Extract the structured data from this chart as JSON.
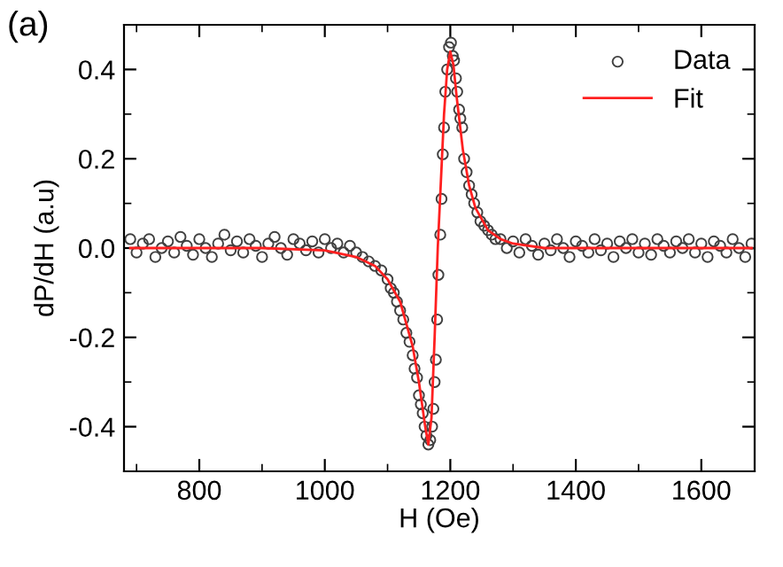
{
  "chart_data": {
    "type": "scatter",
    "title": "(a)",
    "xlabel": "H (Oe)",
    "ylabel": "dP/dH (a.u)",
    "xlim": [
      680,
      1685
    ],
    "ylim": [
      -0.5,
      0.5
    ],
    "xticks": [
      800,
      1000,
      1200,
      1400,
      1600
    ],
    "yticks": [
      {
        "value": -0.4,
        "label": "-0.4"
      },
      {
        "value": -0.2,
        "label": "-0.2"
      },
      {
        "value": 0.0,
        "label": "0.0"
      },
      {
        "value": 0.2,
        "label": "0.2"
      },
      {
        "value": 0.4,
        "label": "0.4"
      }
    ],
    "grid": false,
    "legend": "top right",
    "series": [
      {
        "name": "Data",
        "color": "#404040",
        "marker": "circle",
        "x": [
          690,
          700,
          710,
          720,
          730,
          740,
          750,
          760,
          770,
          780,
          790,
          800,
          810,
          820,
          830,
          840,
          850,
          860,
          870,
          880,
          890,
          900,
          910,
          920,
          930,
          940,
          950,
          960,
          970,
          980,
          990,
          1000,
          1010,
          1020,
          1030,
          1040,
          1050,
          1060,
          1070,
          1080,
          1090,
          1100,
          1105,
          1110,
          1115,
          1120,
          1125,
          1130,
          1135,
          1140,
          1143,
          1147,
          1150,
          1153,
          1156,
          1159,
          1162,
          1165,
          1168,
          1171,
          1173,
          1175,
          1177,
          1179,
          1181,
          1184,
          1186,
          1188,
          1190,
          1192,
          1195,
          1198,
          1201,
          1204,
          1206,
          1209,
          1211,
          1214,
          1216,
          1219,
          1222,
          1226,
          1230,
          1234,
          1238,
          1243,
          1248,
          1254,
          1260,
          1266,
          1272,
          1280,
          1290,
          1300,
          1310,
          1320,
          1330,
          1340,
          1350,
          1360,
          1370,
          1380,
          1390,
          1400,
          1410,
          1420,
          1430,
          1440,
          1450,
          1460,
          1470,
          1480,
          1490,
          1500,
          1510,
          1520,
          1530,
          1540,
          1550,
          1560,
          1570,
          1580,
          1590,
          1600,
          1610,
          1620,
          1630,
          1640,
          1650,
          1660,
          1670,
          1680
        ],
        "values": [
          0.02,
          -0.01,
          0.01,
          0.02,
          -0.02,
          0.0,
          0.015,
          -0.01,
          0.025,
          0.005,
          -0.015,
          0.02,
          0.0,
          -0.02,
          0.01,
          0.03,
          -0.005,
          0.015,
          -0.01,
          0.02,
          0.005,
          -0.02,
          0.01,
          0.025,
          0.0,
          -0.015,
          0.02,
          0.01,
          -0.005,
          0.015,
          -0.01,
          0.02,
          0.0,
          0.01,
          -0.01,
          0.005,
          -0.01,
          -0.02,
          -0.03,
          -0.04,
          -0.05,
          -0.07,
          -0.09,
          -0.1,
          -0.12,
          -0.14,
          -0.16,
          -0.19,
          -0.21,
          -0.24,
          -0.27,
          -0.29,
          -0.33,
          -0.35,
          -0.37,
          -0.4,
          -0.42,
          -0.44,
          -0.43,
          -0.4,
          -0.36,
          -0.3,
          -0.25,
          -0.16,
          -0.06,
          0.03,
          0.11,
          0.21,
          0.27,
          0.35,
          0.4,
          0.45,
          0.46,
          0.43,
          0.42,
          0.38,
          0.35,
          0.31,
          0.29,
          0.27,
          0.2,
          0.17,
          0.14,
          0.12,
          0.1,
          0.08,
          0.06,
          0.05,
          0.04,
          0.03,
          0.02,
          0.02,
          0.0,
          0.015,
          -0.01,
          0.02,
          0.005,
          -0.015,
          0.01,
          -0.005,
          0.02,
          0.0,
          -0.02,
          0.015,
          0.005,
          -0.01,
          0.02,
          -0.005,
          0.01,
          -0.02,
          0.015,
          0.0,
          0.02,
          -0.01,
          0.01,
          -0.015,
          0.02,
          0.005,
          -0.01,
          0.015,
          0.0,
          0.02,
          -0.01,
          0.01,
          -0.02,
          0.015,
          0.005,
          -0.01,
          0.02,
          0.0,
          -0.02,
          0.01
        ]
      },
      {
        "name": "Fit",
        "type": "line",
        "color": "#ff2020",
        "marker": "none",
        "line_style": "solid",
        "x": [
          690,
          900,
          1000,
          1050,
          1080,
          1100,
          1120,
          1140,
          1150,
          1160,
          1165,
          1170,
          1175,
          1180,
          1185,
          1190,
          1195,
          1200,
          1205,
          1210,
          1220,
          1230,
          1240,
          1260,
          1280,
          1300,
          1350,
          1400,
          1680
        ],
        "values": [
          0,
          0,
          -0.005,
          -0.02,
          -0.04,
          -0.07,
          -0.12,
          -0.22,
          -0.3,
          -0.4,
          -0.44,
          -0.38,
          -0.2,
          0.0,
          0.15,
          0.3,
          0.4,
          0.44,
          0.41,
          0.34,
          0.22,
          0.14,
          0.09,
          0.04,
          0.02,
          0.01,
          0.0,
          0.0,
          0.0
        ]
      }
    ]
  }
}
